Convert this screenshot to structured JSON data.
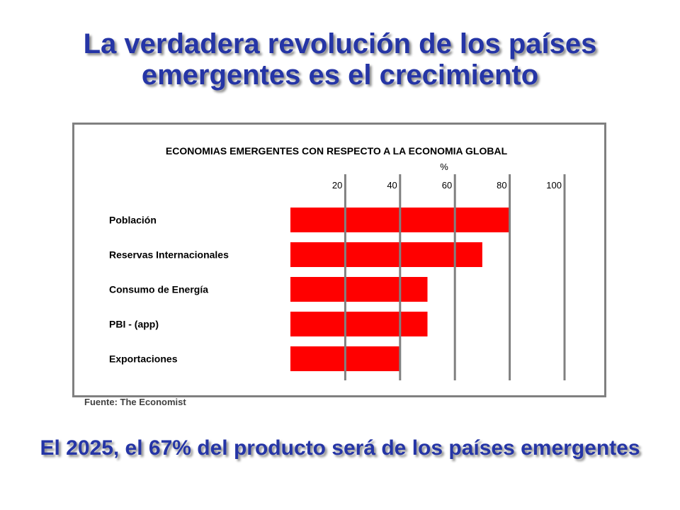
{
  "slide": {
    "title_line1": "La verdadera revolución de los países",
    "title_line2": "emergentes es el crecimiento",
    "source": "Fuente: The Economist",
    "subtitle": "El 2025, el 67% del producto será de los países emergentes"
  },
  "colors": {
    "title": "#2535a6",
    "bar": "#ff0000",
    "grid": "#808080"
  },
  "chart_data": {
    "type": "bar",
    "orientation": "horizontal",
    "title": "ECONOMIAS EMERGENTES CON RESPECTO A LA ECONOMIA GLOBAL",
    "xlabel": "%",
    "xlim": [
      0,
      100
    ],
    "xticks": [
      20,
      40,
      60,
      80,
      100
    ],
    "xtick_labels": [
      "20",
      "40",
      "60",
      "80",
      "100"
    ],
    "grid": true,
    "categories": [
      "Población",
      "Reservas Internacionales",
      "Consumo de Energía",
      "PBI - (app)",
      "Exportaciones"
    ],
    "values": [
      80,
      70,
      50,
      50,
      40
    ]
  }
}
